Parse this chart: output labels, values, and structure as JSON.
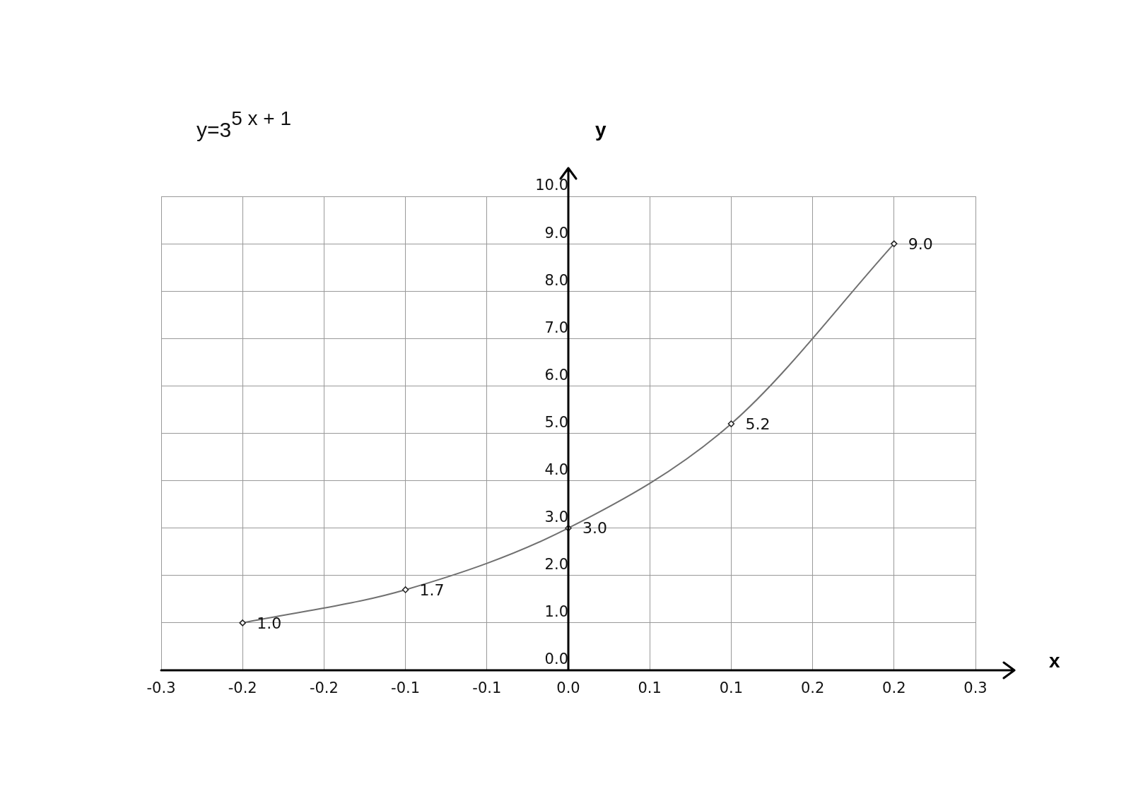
{
  "chart_data": {
    "type": "line",
    "title": "y=3$^{5  x + 1}$",
    "xlabel": "x",
    "ylabel": "y",
    "x": [
      -0.2,
      -0.1,
      0,
      0.1,
      0.2
    ],
    "series": [
      {
        "color": "#707070",
        "values": [
          1.0,
          1.7,
          3.0,
          5.2,
          9.0
        ],
        "value_labels": [
          "1.0",
          "1.7",
          "3.0",
          "5.2",
          "9.0"
        ]
      }
    ],
    "xlim": [
      -0.25,
      0.25
    ],
    "xticks": [
      {
        "value": -0.25,
        "label": "-0.3"
      },
      {
        "value": -0.2,
        "label": "-0.2"
      },
      {
        "value": -0.15,
        "label": "-0.2"
      },
      {
        "value": -0.1,
        "label": "-0.1"
      },
      {
        "value": -0.05,
        "label": "-0.1"
      },
      {
        "value": 0,
        "label": "0.0"
      },
      {
        "value": 0.05,
        "label": "0.1"
      },
      {
        "value": 0.1,
        "label": "0.1"
      },
      {
        "value": 0.15,
        "label": "0.2"
      },
      {
        "value": 0.2,
        "label": "0.2"
      },
      {
        "value": 0.25,
        "label": "0.3"
      }
    ],
    "ylim": [
      0,
      10
    ],
    "yticks": [
      {
        "value": 0,
        "label": "0.0"
      },
      {
        "value": 1,
        "label": "1.0"
      },
      {
        "value": 2,
        "label": "2.0"
      },
      {
        "value": 3,
        "label": "3.0"
      },
      {
        "value": 4,
        "label": "4.0"
      },
      {
        "value": 5,
        "label": "5.0"
      },
      {
        "value": 6,
        "label": "6.0"
      },
      {
        "value": 7,
        "label": "7.0"
      },
      {
        "value": 8,
        "label": "8.0"
      },
      {
        "value": 9,
        "label": "9.0"
      },
      {
        "value": 10,
        "label": "10.0"
      }
    ],
    "grid": true,
    "marker": "diamond",
    "line_style": "solid",
    "legend": false
  }
}
